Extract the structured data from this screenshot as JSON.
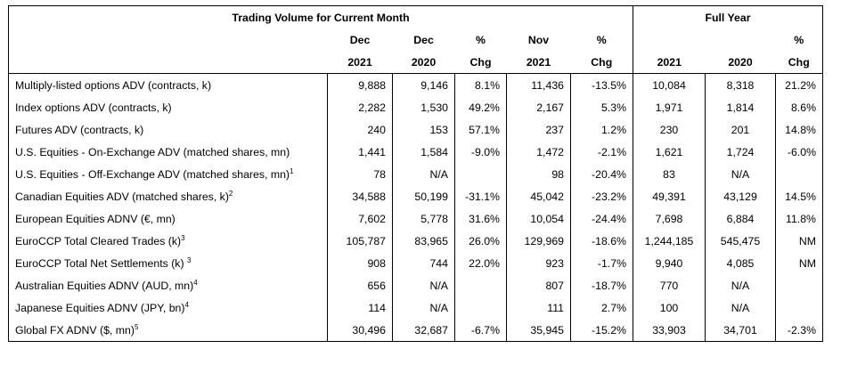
{
  "header": {
    "current_month_title": "Trading Volume for Current Month",
    "full_year_title": "Full Year",
    "row2": [
      "Dec",
      "Dec",
      "%",
      "Nov",
      "%",
      "",
      "",
      "%"
    ],
    "row3": [
      "2021",
      "2020",
      "Chg",
      "2021",
      "Chg",
      "2021",
      "2020",
      "Chg"
    ]
  },
  "rows": [
    {
      "label": "Multiply-listed options ADV (contracts, k)",
      "sup": "",
      "values": [
        "9,888",
        "9,146",
        "8.1%",
        "11,436",
        "-13.5%",
        "10,084",
        "8,318",
        "21.2%"
      ]
    },
    {
      "label": "Index options ADV (contracts, k)",
      "sup": "",
      "values": [
        "2,282",
        "1,530",
        "49.2%",
        "2,167",
        "5.3%",
        "1,971",
        "1,814",
        "8.6%"
      ]
    },
    {
      "label": "Futures ADV (contracts, k)",
      "sup": "",
      "values": [
        "240",
        "153",
        "57.1%",
        "237",
        "1.2%",
        "230",
        "201",
        "14.8%"
      ]
    },
    {
      "label": "U.S. Equities - On-Exchange ADV (matched shares, mn)",
      "sup": "",
      "values": [
        "1,441",
        "1,584",
        "-9.0%",
        "1,472",
        "-2.1%",
        "1,621",
        "1,724",
        "-6.0%"
      ]
    },
    {
      "label": "U.S. Equities - Off-Exchange ADV (matched shares, mn)",
      "sup": "1",
      "values": [
        "78",
        "N/A",
        "",
        "98",
        "-20.4%",
        "83",
        "N/A",
        ""
      ]
    },
    {
      "label": "Canadian Equities ADV (matched shares, k)",
      "sup": "2",
      "values": [
        "34,588",
        "50,199",
        "-31.1%",
        "45,042",
        "-23.2%",
        "49,391",
        "43,129",
        "14.5%"
      ]
    },
    {
      "label": "European Equities ADNV (€, mn)",
      "sup": "",
      "values": [
        "7,602",
        "5,778",
        "31.6%",
        "10,054",
        "-24.4%",
        "7,698",
        "6,884",
        "11.8%"
      ]
    },
    {
      "label": "EuroCCP Total Cleared Trades (k)",
      "sup": "3",
      "values": [
        "105,787",
        "83,965",
        "26.0%",
        "129,969",
        "-18.6%",
        "1,244,185",
        "545,475",
        "NM"
      ]
    },
    {
      "label": "EuroCCP Total Net Settlements (k) ",
      "sup": "3",
      "values": [
        "908",
        "744",
        "22.0%",
        "923",
        "-1.7%",
        "9,940",
        "4,085",
        "NM"
      ]
    },
    {
      "label": "Australian Equities ADNV (AUD, mn)",
      "sup": "4",
      "values": [
        "656",
        "N/A",
        "",
        "807",
        "-18.7%",
        "770",
        "N/A",
        ""
      ]
    },
    {
      "label": "Japanese Equities ADNV (JPY, bn)",
      "sup": "4",
      "values": [
        "114",
        "N/A",
        "",
        "111",
        "2.7%",
        "100",
        "N/A",
        ""
      ]
    },
    {
      "label": "Global FX ADNV ($, mn)",
      "sup": "5",
      "values": [
        "30,496",
        "32,687",
        "-6.7%",
        "35,945",
        "-15.2%",
        "33,903",
        "34,701",
        "-2.3%"
      ]
    }
  ]
}
